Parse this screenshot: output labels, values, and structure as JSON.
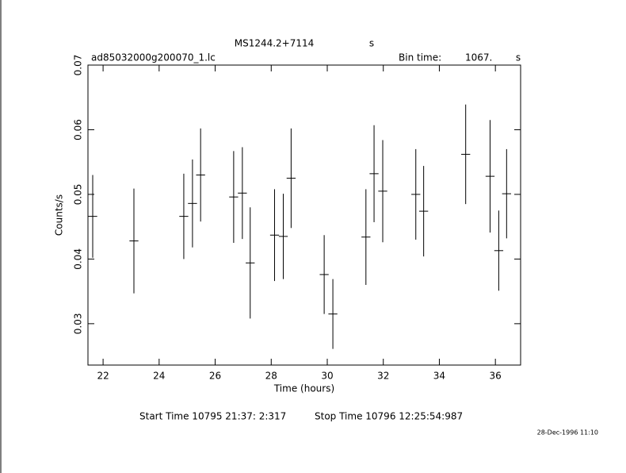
{
  "chart_data": {
    "type": "errorbar",
    "title": "MS1244.2+7114",
    "title_unit": "s",
    "subtitle": "ad85032000g200070_1.lc",
    "bin_time_label": "Bin time:",
    "bin_time_value": "1067.",
    "bin_time_unit": "s",
    "xlabel": "Time (hours)",
    "ylabel": "Counts/s",
    "start_time": "Start Time 10795 21:37: 2:317",
    "stop_time": "Stop Time 10796 12:25:54:987",
    "date_stamp": "28-Dec-1996 11:10",
    "color": "#000000",
    "x": [
      21.63,
      23.1,
      24.88,
      25.19,
      25.48,
      26.66,
      26.97,
      27.25,
      28.12,
      28.43,
      28.71,
      29.89,
      30.2,
      31.38,
      31.67,
      31.98,
      33.16,
      33.44,
      34.94,
      35.81,
      36.12,
      36.4
    ],
    "xerr": 0.16,
    "values": [
      0.0466,
      0.0428,
      0.0466,
      0.0486,
      0.053,
      0.0496,
      0.0502,
      0.0394,
      0.0437,
      0.0435,
      0.0525,
      0.0376,
      0.0315,
      0.0434,
      0.0532,
      0.0505,
      0.05,
      0.0474,
      0.0562,
      0.0528,
      0.0413,
      0.0501
    ],
    "errors": [
      0.0064,
      0.0081,
      0.0066,
      0.0068,
      0.0072,
      0.0071,
      0.0071,
      0.0086,
      0.0071,
      0.0066,
      0.0077,
      0.0061,
      0.0054,
      0.0074,
      0.0075,
      0.0079,
      0.007,
      0.007,
      0.0077,
      0.0087,
      0.0062,
      0.0069
    ],
    "xlim": [
      21.46,
      36.9
    ],
    "ylim": [
      0.0236,
      0.07
    ],
    "xticks": [
      22,
      24,
      26,
      28,
      30,
      32,
      34,
      36
    ],
    "yticks": [
      0.03,
      0.04,
      0.05,
      0.06,
      0.07
    ]
  }
}
